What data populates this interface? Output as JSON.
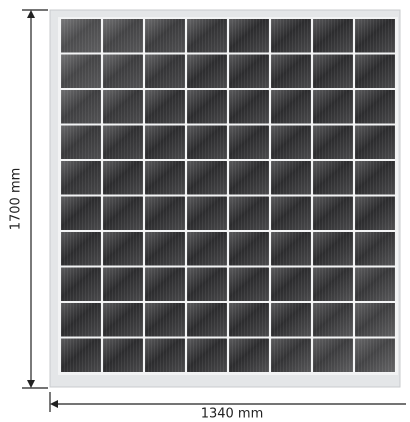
{
  "dimensions": {
    "height": "1700 mm",
    "width": "1340 mm"
  }
}
